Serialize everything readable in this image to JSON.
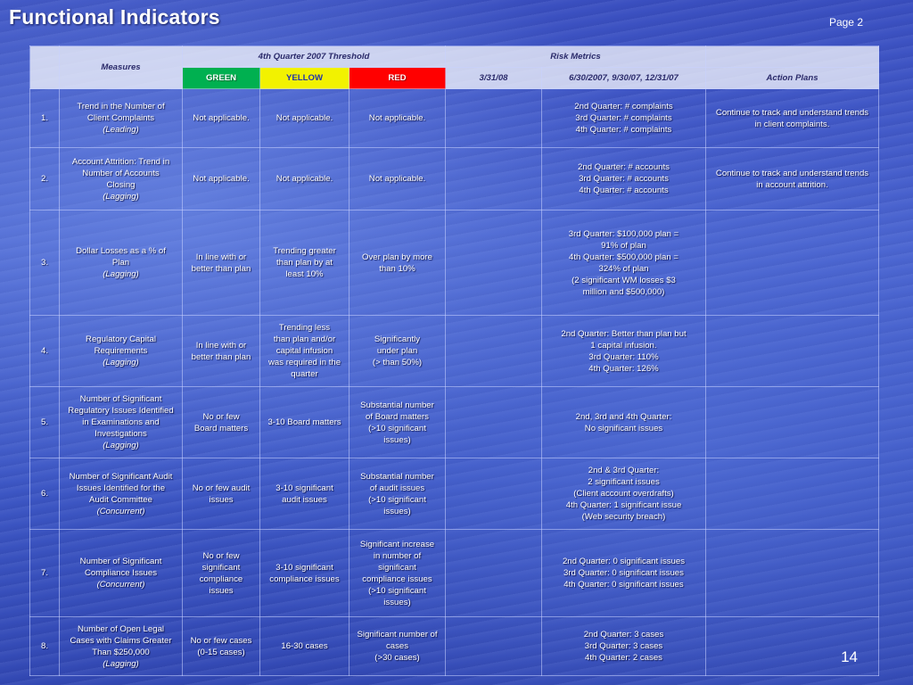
{
  "header": {
    "title": "Functional Indicators",
    "page_label": "Page 2",
    "slide_number": "14"
  },
  "columns": {
    "measures": "Measures",
    "threshold": "4th Quarter 2007 Threshold",
    "risk_metrics": "Risk Metrics",
    "green": "GREEN",
    "yellow": "YELLOW",
    "red": "RED",
    "date1": "3/31/08",
    "date2": "6/30/2007, 9/30/07, 12/31/07",
    "action_plans": "Action Plans"
  },
  "colors": {
    "green": "#00b050",
    "yellow": "#f2f200",
    "red": "#ff0000"
  },
  "rows": [
    {
      "num": "1.",
      "measure": "Trend in the Number of\nClient Complaints",
      "category": "(Leading)",
      "green": "Not applicable.",
      "yellow": "Not applicable.",
      "red": "Not applicable.",
      "date1": "",
      "date2": "2nd Quarter: # complaints\n3rd Quarter: # complaints\n4th Quarter: # complaints",
      "action": "Continue to track and understand trends\nin client complaints."
    },
    {
      "num": "2.",
      "measure": "Account Attrition: Trend in\nNumber of Accounts\nClosing",
      "category": "(Lagging)",
      "green": "Not applicable.",
      "yellow": "Not applicable.",
      "red": "Not applicable.",
      "date1": "",
      "date2": "2nd Quarter: # accounts\n3rd Quarter: # accounts\n4th Quarter: # accounts",
      "action": "Continue to track and understand trends\nin account attrition."
    },
    {
      "num": "3.",
      "measure": "Dollar Losses as a % of\nPlan",
      "category": "(Lagging)",
      "green": "In line with or\nbetter than plan",
      "yellow": "Trending greater\nthan plan by at\nleast 10%",
      "red": "Over plan by more\nthan 10%",
      "date1": "",
      "date2": "3rd Quarter: $100,000 plan =\n91% of plan\n4th Quarter: $500,000 plan =\n324% of plan\n(2 significant WM losses $3\nmillion and $500,000)",
      "action": ""
    },
    {
      "num": "4.",
      "measure": "Regulatory Capital\nRequirements",
      "category": "(Lagging)",
      "green": "In line with or\nbetter than plan",
      "yellow": "Trending less\nthan plan and/or\ncapital infusion\nwas required in the\nquarter",
      "red": "Significantly\nunder plan\n(> than 50%)",
      "date1": "",
      "date2": "2nd Quarter: Better than plan but\n1 capital infusion.\n3rd Quarter: 110%\n4th Quarter: 126%",
      "action": ""
    },
    {
      "num": "5.",
      "measure": "Number of Significant\nRegulatory Issues Identified\nin Examinations and\nInvestigations",
      "category": "(Lagging)",
      "green": "No or few\nBoard matters",
      "yellow": "3-10 Board matters",
      "red": "Substantial number\nof Board matters\n(>10 significant\nissues)",
      "date1": "",
      "date2": "2nd, 3rd and 4th Quarter:\nNo significant issues",
      "action": ""
    },
    {
      "num": "6.",
      "measure": "Number of Significant Audit\nIssues Identified for the\nAudit Committee",
      "category": "(Concurrent)",
      "green": "No or few audit\nissues",
      "yellow": "3-10 significant\naudit issues",
      "red": "Substantial number\nof audit issues\n(>10 significant\nissues)",
      "date1": "",
      "date2": "2nd & 3rd Quarter:\n2 significant issues\n(Client account overdrafts)\n4th Quarter: 1 significant issue\n(Web security breach)",
      "action": ""
    },
    {
      "num": "7.",
      "measure": "Number of Significant\nCompliance Issues",
      "category": "(Concurrent)",
      "green": "No or few\nsignificant\ncompliance\nissues",
      "yellow": "3-10 significant\ncompliance issues",
      "red": "Significant increase\nin number of\nsignificant\ncompliance issues\n(>10 significant\nissues)",
      "date1": "",
      "date2": "2nd Quarter: 0 significant issues\n3rd Quarter: 0 significant issues\n4th Quarter: 0 significant issues",
      "action": ""
    },
    {
      "num": "8.",
      "measure": "Number of Open Legal\nCases with Claims Greater\nThan $250,000",
      "category": "(Lagging)",
      "green": "No or few cases\n(0-15 cases)",
      "yellow": "16-30 cases",
      "red": "Significant number of\ncases\n(>30 cases)",
      "date1": "",
      "date2": "2nd Quarter: 3 cases\n3rd Quarter: 3 cases\n4th Quarter: 2 cases",
      "action": ""
    }
  ]
}
